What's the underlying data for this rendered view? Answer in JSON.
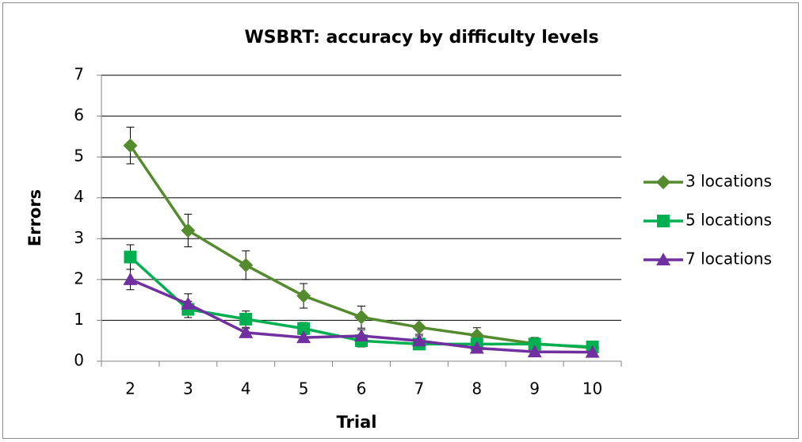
{
  "chart_data": {
    "type": "line",
    "title": "WSBRT: accuracy by difficulty levels",
    "x_label": "Trial",
    "y_label": "Errors",
    "categories": [
      "2",
      "3",
      "4",
      "5",
      "6",
      "7",
      "8",
      "9",
      "10"
    ],
    "series": [
      {
        "name": "3 locations",
        "color": "#558b2f",
        "marker": "diamond",
        "values": [
          5.28,
          3.2,
          2.35,
          1.6,
          1.08,
          0.83,
          0.63,
          0.43,
          0.33
        ],
        "errors": [
          0.45,
          0.4,
          0.35,
          0.3,
          0.27,
          0.17,
          0.19,
          0.15,
          0.1
        ]
      },
      {
        "name": "5 locations",
        "color": "#00b050",
        "marker": "square",
        "values": [
          2.55,
          1.27,
          1.03,
          0.8,
          0.5,
          0.42,
          0.42,
          0.42,
          0.35
        ],
        "errors": [
          0.3,
          0.2,
          0.2,
          0.15,
          0.15,
          0.1,
          0.1,
          0.1,
          0.08
        ]
      },
      {
        "name": "7 locations",
        "color": "#7030a0",
        "marker": "triangle",
        "values": [
          2.0,
          1.4,
          0.7,
          0.58,
          0.62,
          0.5,
          0.32,
          0.23,
          0.22
        ],
        "errors": [
          0.25,
          0.25,
          0.1,
          0.1,
          0.15,
          0.12,
          0.1,
          0.08,
          0.07
        ]
      }
    ],
    "ylim": [
      0,
      7
    ],
    "yticks": [
      0,
      1,
      2,
      3,
      4,
      5,
      6,
      7
    ],
    "grid": true,
    "legend": "right"
  }
}
